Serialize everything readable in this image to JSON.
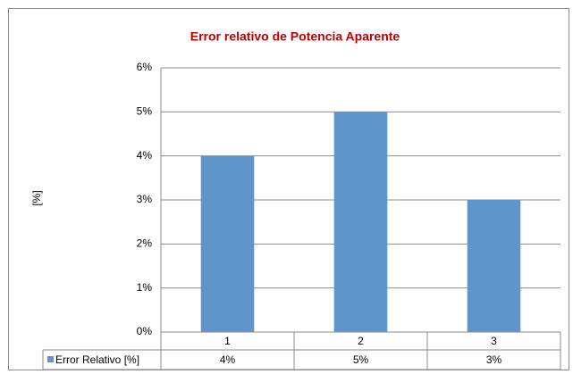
{
  "chart_data": {
    "type": "bar",
    "title": "Error relativo de Potencia Aparente",
    "y_label": "[%]",
    "categories": [
      "1",
      "2",
      "3"
    ],
    "series": [
      {
        "name": "Error Relativo [%]",
        "color": "#5f95cb",
        "values": [
          4,
          5,
          3
        ],
        "value_labels": [
          "4%",
          "5%",
          "3%"
        ]
      }
    ],
    "ylim": [
      0,
      6
    ],
    "yticks": [
      {
        "value": 0,
        "label": "0%"
      },
      {
        "value": 1,
        "label": "1%"
      },
      {
        "value": 2,
        "label": "2%"
      },
      {
        "value": 3,
        "label": "3%"
      },
      {
        "value": 4,
        "label": "4%"
      },
      {
        "value": 5,
        "label": "5%"
      },
      {
        "value": 6,
        "label": "6%"
      }
    ],
    "grid": true
  }
}
